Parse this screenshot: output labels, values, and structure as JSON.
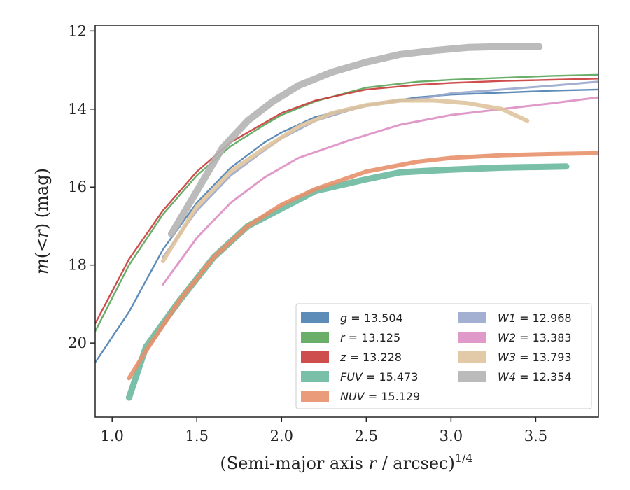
{
  "chart_data": {
    "type": "line",
    "title": "",
    "xlabel": "(Semi-major axis r / arcsec)^1/4",
    "xlabel_parts": {
      "main": "(Semi-major axis ",
      "var": "r",
      "rest": " / arcsec)",
      "exp": "1/4"
    },
    "ylabel": "m(<r) (mag)",
    "ylabel_parts": {
      "m": "m",
      "open": "(",
      "lt": "<",
      "r": "r",
      "close": ")",
      "unit": " (mag)"
    },
    "xlim": [
      0.9,
      3.87
    ],
    "ylim": [
      21.9,
      11.85
    ],
    "y_inverted": true,
    "xticks": [
      "1.0",
      "1.5",
      "2.0",
      "2.5",
      "3.0",
      "3.5"
    ],
    "yticks": [
      "12",
      "14",
      "16",
      "18",
      "20"
    ],
    "grid": false,
    "legend_position": "lower-right",
    "series": [
      {
        "name": "g = 13.504",
        "label_var": "g",
        "label_val": "13.504",
        "color": "#4c7fb0",
        "width": 2.4,
        "x": [
          0.9,
          1.1,
          1.3,
          1.5,
          1.7,
          1.9,
          2.0,
          2.2,
          2.5,
          2.8,
          3.0,
          3.3,
          3.6,
          3.87
        ],
        "y": [
          20.5,
          19.2,
          17.6,
          16.4,
          15.5,
          14.85,
          14.6,
          14.2,
          13.9,
          13.7,
          13.63,
          13.58,
          13.53,
          13.5
        ]
      },
      {
        "name": "r = 13.125",
        "label_var": "r",
        "label_val": "13.125",
        "color": "#5aa55a",
        "width": 2.4,
        "x": [
          0.9,
          1.1,
          1.3,
          1.5,
          1.7,
          1.9,
          2.0,
          2.2,
          2.5,
          2.8,
          3.0,
          3.3,
          3.6,
          3.87
        ],
        "y": [
          19.7,
          18.0,
          16.7,
          15.7,
          14.95,
          14.4,
          14.15,
          13.8,
          13.45,
          13.3,
          13.25,
          13.2,
          13.15,
          13.12
        ]
      },
      {
        "name": "z = 13.228",
        "label_var": "z",
        "label_val": "13.228",
        "color": "#c93b3b",
        "width": 2.4,
        "x": [
          0.9,
          1.1,
          1.3,
          1.5,
          1.7,
          1.9,
          2.0,
          2.2,
          2.5,
          2.8,
          3.0,
          3.3,
          3.6,
          3.87
        ],
        "y": [
          19.5,
          17.85,
          16.6,
          15.6,
          14.85,
          14.35,
          14.1,
          13.78,
          13.5,
          13.38,
          13.33,
          13.28,
          13.25,
          13.22
        ]
      },
      {
        "name": "FUV = 15.473",
        "label_var": "FUV",
        "label_val": "15.473",
        "color": "#6bb89e",
        "width": 9,
        "x": [
          1.1,
          1.2,
          1.4,
          1.6,
          1.8,
          2.0,
          2.2,
          2.5,
          2.7,
          3.0,
          3.3,
          3.68
        ],
        "y": [
          21.4,
          20.1,
          18.9,
          17.8,
          17.0,
          16.55,
          16.1,
          15.8,
          15.62,
          15.55,
          15.5,
          15.47
        ]
      },
      {
        "name": "NUV = 15.129",
        "label_var": "NUV",
        "label_val": "15.129",
        "color": "#e8906a",
        "width": 6,
        "x": [
          1.1,
          1.2,
          1.4,
          1.6,
          1.8,
          2.0,
          2.2,
          2.5,
          2.8,
          3.0,
          3.3,
          3.6,
          3.87
        ],
        "y": [
          20.9,
          20.2,
          18.9,
          17.8,
          17.0,
          16.45,
          16.05,
          15.6,
          15.35,
          15.25,
          15.18,
          15.15,
          15.13
        ]
      },
      {
        "name": "W1 = 12.968",
        "label_var": "W1",
        "label_val": "12.968",
        "color": "#99a7cc",
        "width": 3,
        "x": [
          1.3,
          1.5,
          1.7,
          1.9,
          2.0,
          2.2,
          2.5,
          2.8,
          3.0,
          3.3,
          3.6,
          3.87
        ],
        "y": [
          17.8,
          16.6,
          15.7,
          15.05,
          14.75,
          14.3,
          13.9,
          13.75,
          13.6,
          13.5,
          13.4,
          13.3
        ]
      },
      {
        "name": "W2 = 13.383",
        "label_var": "W2",
        "label_val": "13.383",
        "color": "#dd8fc3",
        "width": 3,
        "x": [
          1.3,
          1.5,
          1.7,
          1.9,
          2.1,
          2.4,
          2.7,
          3.0,
          3.3,
          3.6,
          3.87
        ],
        "y": [
          18.5,
          17.3,
          16.4,
          15.75,
          15.25,
          14.8,
          14.4,
          14.15,
          14.0,
          13.85,
          13.7
        ]
      },
      {
        "name": "W3 = 13.793",
        "label_var": "W3",
        "label_val": "13.793",
        "color": "#dfc49e",
        "width": 6,
        "x": [
          1.3,
          1.4,
          1.5,
          1.7,
          1.9,
          2.1,
          2.3,
          2.5,
          2.7,
          2.9,
          3.1,
          3.3,
          3.45
        ],
        "y": [
          17.9,
          17.2,
          16.5,
          15.6,
          15.0,
          14.45,
          14.1,
          13.9,
          13.78,
          13.78,
          13.85,
          14.0,
          14.3
        ]
      },
      {
        "name": "W4 = 12.354",
        "label_var": "W4",
        "label_val": "12.354",
        "color": "#b4b4b4",
        "width": 10,
        "x": [
          1.35,
          1.5,
          1.65,
          1.8,
          1.95,
          2.1,
          2.3,
          2.5,
          2.7,
          2.9,
          3.1,
          3.3,
          3.52
        ],
        "y": [
          17.2,
          16.1,
          15.0,
          14.3,
          13.8,
          13.4,
          13.05,
          12.8,
          12.6,
          12.5,
          12.42,
          12.4,
          12.4
        ]
      }
    ]
  }
}
